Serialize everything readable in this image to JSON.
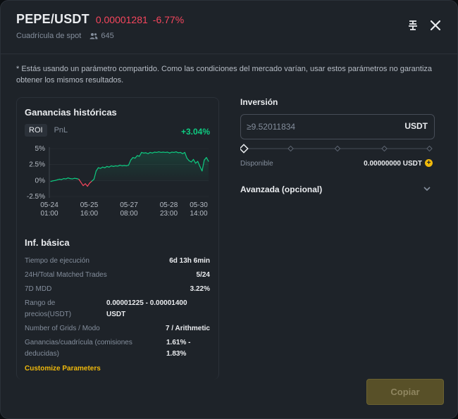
{
  "header": {
    "pair": "PEPE/USDT",
    "price": "0.00001281",
    "change": "-6.77%",
    "subtitle": "Cuadrícula de spot",
    "users": "645"
  },
  "notice": "* Estás usando un parámetro compartido. Como las condiciones del mercado varían, usar estos parámetros no garantiza obtener los mismos resultados.",
  "history": {
    "title": "Ganancias históricas",
    "tabs": [
      "ROI",
      "PnL"
    ],
    "roi_value": "+3.04%"
  },
  "chart_data": {
    "type": "line",
    "y_ticks": [
      "5%",
      "2.5%",
      "0%",
      "-2.5%"
    ],
    "x_ticks": [
      [
        "05-24",
        "01:00"
      ],
      [
        "05-25",
        "16:00"
      ],
      [
        "05-27",
        "08:00"
      ],
      [
        "05-28",
        "23:00"
      ],
      [
        "05-30",
        "14:00"
      ]
    ],
    "ylim": [
      -2.5,
      5
    ],
    "colors": {
      "positive": "#0ecb81",
      "negative": "#f6465d"
    },
    "series": [
      {
        "values": [
          -0.15,
          -0.05,
          0.0,
          0.1,
          0.2,
          0.15,
          0.3,
          0.25,
          0.4,
          0.3,
          0.25,
          0.35,
          0.3,
          0.2,
          -0.3,
          -0.8,
          -0.5,
          -0.9,
          -0.4,
          -0.1,
          0.2,
          1.5,
          2.0,
          1.9,
          2.1,
          2.0,
          2.2,
          2.1,
          2.3,
          2.2,
          2.3,
          2.25,
          2.4,
          2.3,
          2.35,
          2.3,
          2.4,
          3.2,
          3.6,
          3.5,
          3.9,
          3.8,
          4.4,
          4.3,
          4.35,
          4.2,
          4.4,
          4.3,
          4.45,
          4.4,
          4.5,
          4.4,
          4.45,
          4.4,
          4.45,
          4.3,
          4.45,
          4.4,
          4.5,
          4.35,
          4.4,
          4.2,
          4.4,
          3.5,
          3.1,
          2.9,
          3.3,
          2.7,
          3.0,
          2.2,
          1.5,
          3.2,
          3.6,
          3.0
        ]
      }
    ]
  },
  "basic": {
    "title": "Inf. básica",
    "rows": [
      {
        "k": "Tiempo de ejecución",
        "v": "6d 13h 6min"
      },
      {
        "k": "24H/Total Matched Trades",
        "v": "5/24"
      },
      {
        "k": "7D MDD",
        "v": "3.22%"
      },
      {
        "k1": "Rango de",
        "k2": "precios(USDT)",
        "v1": "0.00001225 - 0.00001400",
        "v2": "USDT"
      },
      {
        "k": "Number of Grids / Modo",
        "v": "7 / Arithmetic"
      },
      {
        "k1": "Ganancias/cuadrícula (comisiones",
        "k2": "deducidas)",
        "v1": "1.61% -",
        "v2": "1.83%"
      }
    ],
    "customize": "Customize Parameters"
  },
  "investment": {
    "label": "Inversión",
    "placeholder": "≥9.52011834",
    "unit": "USDT",
    "available_label": "Disponible",
    "available_value": "0.00000000 USDT"
  },
  "advanced": "Avanzada (opcional)",
  "copy_button": "Copiar"
}
